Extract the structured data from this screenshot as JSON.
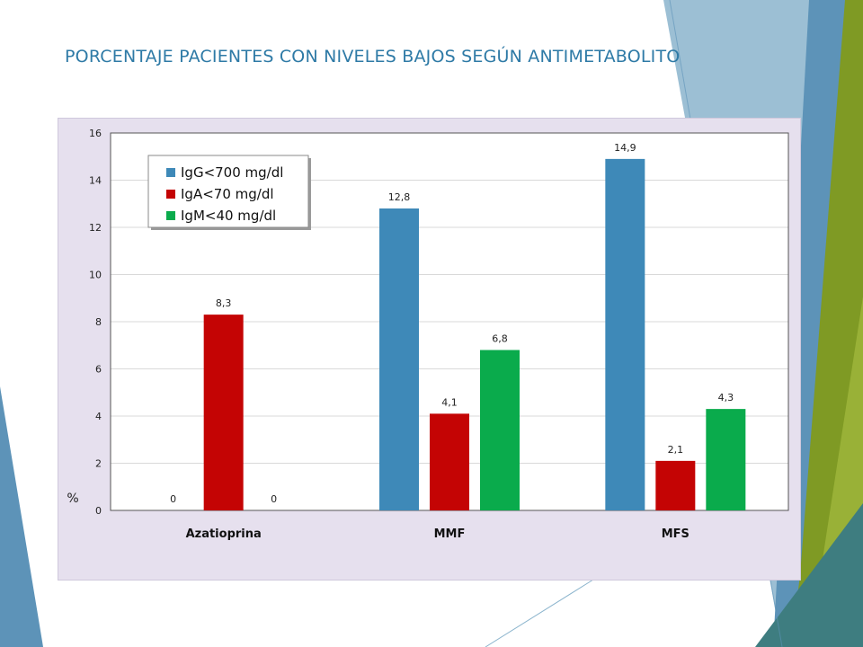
{
  "slide": {
    "title": "PORCENTAJE PACIENTES CON NIVELES BAJOS SEGÚN ANTIMETABOLITO"
  },
  "colors": {
    "title": "#2e7aa6",
    "panel_background": "#e6e0ee",
    "decor_light_blue": "#8bb4cd",
    "decor_blue": "#5d93b8",
    "decor_olive": "#7f9a24",
    "decor_green": "#9cb43a",
    "decor_teal": "#3e7d80"
  },
  "chart_data": {
    "type": "bar",
    "categories": [
      "Azatioprina",
      "MMF",
      "MFS"
    ],
    "series": [
      {
        "name": "IgG<700 mg/dl",
        "color": "#3e89b8",
        "values": [
          0,
          12.8,
          14.9
        ],
        "labels": [
          "0",
          "12,8",
          "14,9"
        ]
      },
      {
        "name": "IgA<70 mg/dl",
        "color": "#c40404",
        "values": [
          8.3,
          4.1,
          2.1
        ],
        "labels": [
          "8,3",
          "4,1",
          "2,1"
        ]
      },
      {
        "name": "IgM<40 mg/dl",
        "color": "#0aab4c",
        "values": [
          0,
          6.8,
          4.3
        ],
        "labels": [
          "0",
          "6,8",
          "4,3"
        ]
      }
    ],
    "ylabel": "%",
    "ylim": [
      0,
      16
    ],
    "yticks": [
      "0",
      "2",
      "4",
      "6",
      "8",
      "10",
      "12",
      "14",
      "16"
    ],
    "grid": true,
    "legend_position": "top-left"
  }
}
